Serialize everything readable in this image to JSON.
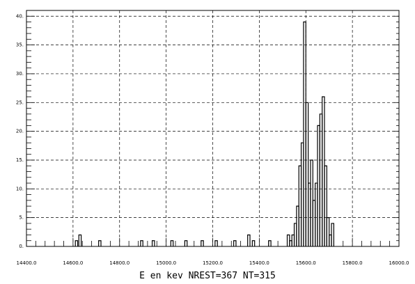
{
  "chart_data": {
    "type": "histogram-step",
    "title": "",
    "xlabel": "E en kev NREST=367 NT=315",
    "ylabel": "",
    "xlim": [
      14400.0,
      16000.0
    ],
    "ylim": [
      0,
      41
    ],
    "grid": true,
    "grid_style": "dashed",
    "x_tick_labels": [
      "14400.0",
      "14600.0",
      "14800.0",
      "15000.0",
      "15200.0",
      "15400.0",
      "15600.0",
      "15800.0",
      "16000.0"
    ],
    "x_tick_values": [
      14400,
      14600,
      14800,
      15000,
      15200,
      15400,
      15600,
      15800,
      16000
    ],
    "y_tick_labels": [
      "0.",
      "5.",
      "10.",
      "15.",
      "20.",
      "25.",
      "30.",
      "35.",
      "40."
    ],
    "y_tick_values": [
      0,
      5,
      10,
      15,
      20,
      25,
      30,
      35,
      40
    ],
    "bin_width": 10,
    "series": [
      {
        "bins": [
          {
            "x": 14610,
            "y": 1
          },
          {
            "x": 14625,
            "y": 2
          },
          {
            "x": 14710,
            "y": 1
          },
          {
            "x": 14890,
            "y": 1
          },
          {
            "x": 14940,
            "y": 1
          },
          {
            "x": 15020,
            "y": 1
          },
          {
            "x": 15080,
            "y": 1
          },
          {
            "x": 15150,
            "y": 1
          },
          {
            "x": 15210,
            "y": 1
          },
          {
            "x": 15290,
            "y": 1
          },
          {
            "x": 15350,
            "y": 2
          },
          {
            "x": 15370,
            "y": 1
          },
          {
            "x": 15440,
            "y": 1
          },
          {
            "x": 15520,
            "y": 2
          },
          {
            "x": 15530,
            "y": 1
          },
          {
            "x": 15540,
            "y": 2
          },
          {
            "x": 15550,
            "y": 4
          },
          {
            "x": 15560,
            "y": 7
          },
          {
            "x": 15570,
            "y": 14
          },
          {
            "x": 15580,
            "y": 18
          },
          {
            "x": 15590,
            "y": 39
          },
          {
            "x": 15600,
            "y": 25
          },
          {
            "x": 15610,
            "y": 11
          },
          {
            "x": 15620,
            "y": 15
          },
          {
            "x": 15630,
            "y": 8
          },
          {
            "x": 15640,
            "y": 11
          },
          {
            "x": 15650,
            "y": 21
          },
          {
            "x": 15660,
            "y": 23
          },
          {
            "x": 15670,
            "y": 26
          },
          {
            "x": 15680,
            "y": 14
          },
          {
            "x": 15690,
            "y": 5
          },
          {
            "x": 15700,
            "y": 2
          },
          {
            "x": 15710,
            "y": 4
          }
        ]
      }
    ]
  }
}
